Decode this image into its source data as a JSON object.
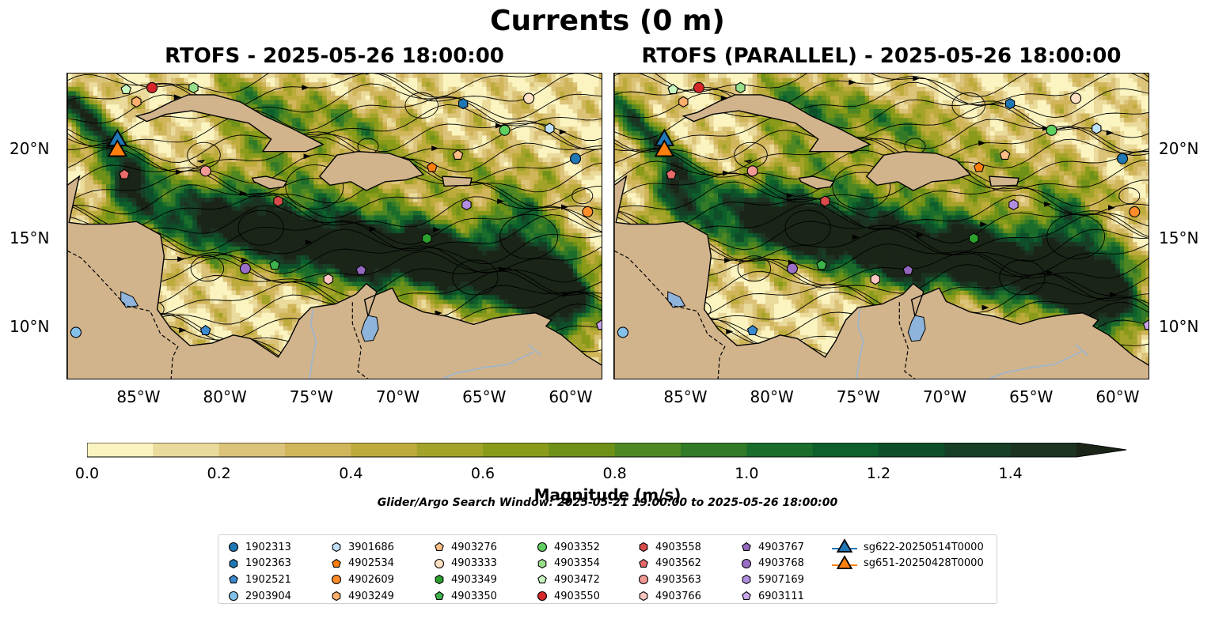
{
  "figure": {
    "suptitle": "Currents (0 m)",
    "panel_titles": [
      "RTOFS - 2025-05-26 18:00:00",
      "RTOFS (PARALLEL) - 2025-05-26 18:00:00"
    ],
    "x_ticks": [
      "85°W",
      "80°W",
      "75°W",
      "70°W",
      "65°W",
      "60°W"
    ],
    "y_ticks": [
      "20°N",
      "15°N",
      "10°N"
    ],
    "colorbar_label": "Magnitude (m/s)",
    "colorbar_ticks": [
      "0.0",
      "0.2",
      "0.4",
      "0.6",
      "0.8",
      "1.0",
      "1.2",
      "1.4"
    ],
    "note": "Glider/Argo Search Window: 2025-05-21 19:00:00 to 2025-05-26 18:00:00",
    "colors": {
      "land": "#d2b48c",
      "lakes": "#8fb4dc",
      "colormap": [
        "#fbf4c0",
        "#eadb9c",
        "#dcc37a",
        "#d0b55a",
        "#bdac3c",
        "#a3a32a",
        "#8a9b1a",
        "#6f9118",
        "#4f8722",
        "#327a27",
        "#1b6d2b",
        "#0d5f2c",
        "#0e4f2a",
        "#163f26",
        "#1d3322",
        "#1a2518"
      ]
    }
  },
  "chart_data": {
    "type": "map",
    "title": "Currents (0 m)",
    "variable": "surface current magnitude",
    "units": "m/s",
    "colorbar_range": [
      0.0,
      1.5
    ],
    "colorbar_extend": "max",
    "lon_range": [
      -89.0,
      -58.0
    ],
    "lat_range": [
      7.0,
      24.3
    ],
    "panels": [
      {
        "title": "RTOFS - 2025-05-26 18:00:00",
        "model": "RTOFS",
        "time": "2025-05-26 18:00:00"
      },
      {
        "title": "RTOFS (PARALLEL) - 2025-05-26 18:00:00",
        "model": "RTOFS (PARALLEL)",
        "time": "2025-05-26 18:00:00"
      }
    ],
    "platforms": [
      {
        "id": "1902313",
        "marker": "circle",
        "color": "#1f77b4",
        "lon": -59.6,
        "lat": 19.5
      },
      {
        "id": "1902363",
        "marker": "hexagon",
        "color": "#1f77b4",
        "lon": -66.1,
        "lat": 22.6
      },
      {
        "id": "1902521",
        "marker": "pentagon",
        "color": "#3a8ad0",
        "lon": -81.0,
        "lat": 9.8
      },
      {
        "id": "2903904",
        "marker": "circle",
        "color": "#84c1ea",
        "lon": -88.5,
        "lat": 9.7
      },
      {
        "id": "3901686",
        "marker": "hexagon",
        "color": "#bfe0f8",
        "lon": -61.1,
        "lat": 21.2
      },
      {
        "id": "4902534",
        "marker": "pentagon",
        "color": "#ff7f0e",
        "lon": -67.9,
        "lat": 19.0
      },
      {
        "id": "4902609",
        "marker": "circle",
        "color": "#ff8c2a",
        "lon": -58.9,
        "lat": 16.5
      },
      {
        "id": "4903249",
        "marker": "hexagon",
        "color": "#ffae6b",
        "lon": -85.0,
        "lat": 22.7
      },
      {
        "id": "4903276",
        "marker": "pentagon",
        "color": "#ffbe86",
        "lon": -66.4,
        "lat": 19.7
      },
      {
        "id": "4903333",
        "marker": "circle",
        "color": "#ffe0c2",
        "lon": -62.3,
        "lat": 22.9
      },
      {
        "id": "4903349",
        "marker": "hexagon",
        "color": "#2ca02c",
        "lon": -68.2,
        "lat": 15.0
      },
      {
        "id": "4903350",
        "marker": "pentagon",
        "color": "#3cb44b",
        "lon": -77.0,
        "lat": 13.5
      },
      {
        "id": "4903352",
        "marker": "circle",
        "color": "#5fcf5f",
        "lon": -63.7,
        "lat": 21.1
      },
      {
        "id": "4903354",
        "marker": "hexagon",
        "color": "#98df8a",
        "lon": -81.7,
        "lat": 23.5
      },
      {
        "id": "4903472",
        "marker": "pentagon",
        "color": "#c9f5c0",
        "lon": -85.6,
        "lat": 23.4
      },
      {
        "id": "4903550",
        "marker": "circle",
        "color": "#d62728",
        "lon": -84.1,
        "lat": 23.5
      },
      {
        "id": "4903558",
        "marker": "hexagon",
        "color": "#d94a4a",
        "lon": -76.8,
        "lat": 17.1
      },
      {
        "id": "4903562",
        "marker": "pentagon",
        "color": "#e86a6a",
        "lon": -85.7,
        "lat": 18.6
      },
      {
        "id": "4903563",
        "marker": "circle",
        "color": "#f29a96",
        "lon": -81.0,
        "lat": 18.8
      },
      {
        "id": "4903766",
        "marker": "hexagon",
        "color": "#fbc6c2",
        "lon": -73.9,
        "lat": 12.7
      },
      {
        "id": "4903767",
        "marker": "pentagon",
        "color": "#9467bd",
        "lon": -72.0,
        "lat": 13.2
      },
      {
        "id": "4903768",
        "marker": "circle",
        "color": "#9b6fc6",
        "lon": -78.7,
        "lat": 13.3
      },
      {
        "id": "5907169",
        "marker": "hexagon",
        "color": "#b28ee0",
        "lon": -65.9,
        "lat": 16.9
      },
      {
        "id": "6903111",
        "marker": "pentagon",
        "color": "#cba8ee",
        "lon": -58.1,
        "lat": 10.1
      },
      {
        "id": "sg622-20250514T0000",
        "marker": "triangle",
        "color": "#1f77b4",
        "lon": -86.1,
        "lat": 20.4
      },
      {
        "id": "sg651-20250428T0000",
        "marker": "triangle",
        "color": "#ff7f0e",
        "lon": -86.1,
        "lat": 19.8
      }
    ]
  }
}
